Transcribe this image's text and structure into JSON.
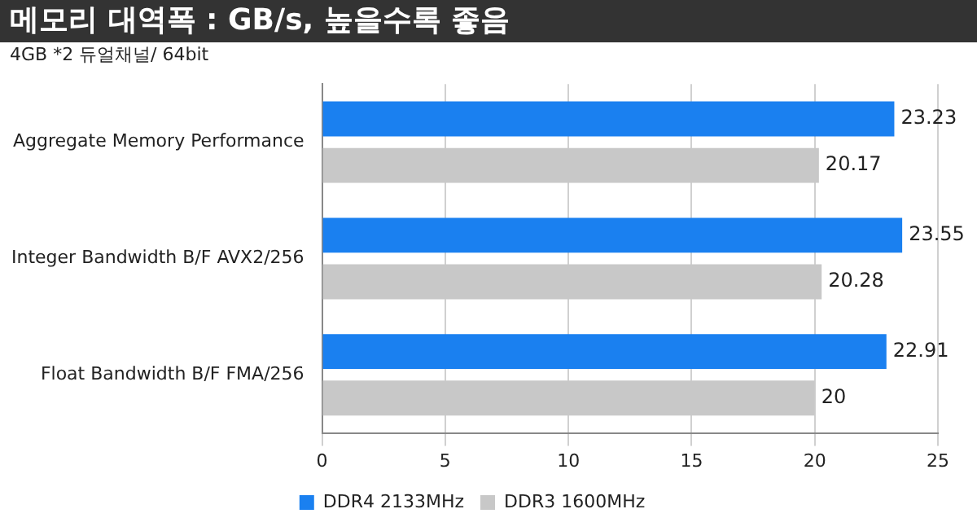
{
  "chart_data": {
    "type": "bar",
    "orientation": "horizontal",
    "title": "메모리 대역폭 : GB/s, 높을수록 좋음",
    "subtitle": "4GB *2 듀얼채널/ 64bit",
    "categories": [
      "Aggregate Memory Performance",
      "Integer Bandwidth B/F AVX2/256",
      "Float Bandwidth B/F FMA/256"
    ],
    "series": [
      {
        "name": "DDR4 2133MHz",
        "color": "#1a80f0",
        "values": [
          23.23,
          23.55,
          22.91
        ],
        "value_labels": [
          "23.23",
          "23.55",
          "22.91"
        ]
      },
      {
        "name": "DDR3 1600MHz",
        "color": "#c8c8c8",
        "values": [
          20.17,
          20.28,
          20
        ],
        "value_labels": [
          "20.17",
          "20.28",
          "20"
        ]
      }
    ],
    "xlim": [
      0,
      25
    ],
    "xticks": [
      0,
      5,
      10,
      15,
      20,
      25
    ],
    "grid": "x",
    "legend": "bottom"
  }
}
